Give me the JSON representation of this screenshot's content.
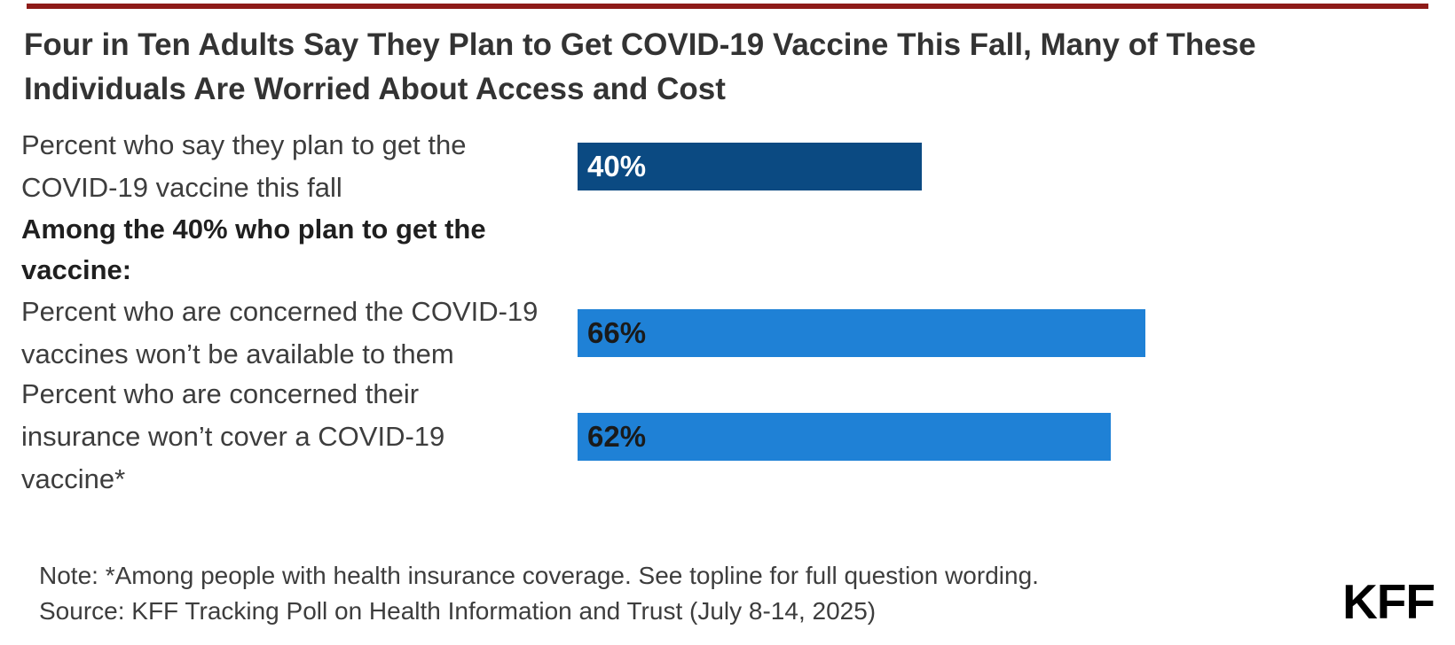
{
  "brand": {
    "top_rule_color": "#8e1b18",
    "logo": "KFF"
  },
  "chart_data": {
    "type": "bar",
    "orientation": "horizontal",
    "title": "Four in Ten Adults Say They Plan to Get COVID-19 Vaccine This Fall, Many of These Individuals Are Worried About Access and Cost",
    "categories": [
      "Percent who say they plan to get the COVID-19 vaccine this fall",
      "Percent who are concerned the COVID-19 vaccines won’t be available to them",
      "Percent who are concerned their insurance won’t cover a COVID-19 vaccine*"
    ],
    "values": [
      40,
      66,
      62
    ],
    "data_labels": [
      "40%",
      "66%",
      "62%"
    ],
    "colors": [
      "#0b4a82",
      "#1f81d6",
      "#1f81d6"
    ],
    "value_label_colors": [
      "#ffffff",
      "#1a1a1a",
      "#1a1a1a"
    ],
    "section_header": "Among the 40% who plan to get the vaccine:",
    "xlim": [
      0,
      100
    ],
    "grid": false,
    "legend": false
  },
  "footer": {
    "note": "Note: *Among people with health insurance coverage. See topline for full question wording.",
    "source": "Source: KFF Tracking Poll on Health Information and Trust (July 8-14, 2025)"
  }
}
